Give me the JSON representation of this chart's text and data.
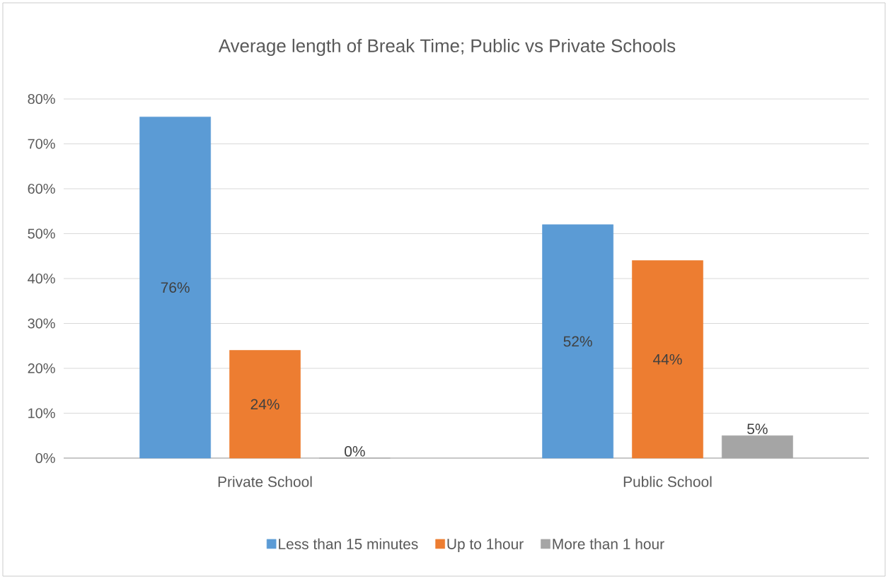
{
  "chart_data": {
    "type": "bar",
    "title": "Average length of Break Time; Public vs Private Schools",
    "categories": [
      "Private School",
      "Public School"
    ],
    "series": [
      {
        "name": "Less than 15 minutes",
        "color": "#5b9bd5",
        "values": [
          76,
          52
        ],
        "value_labels": [
          "76%",
          "52%"
        ]
      },
      {
        "name": "Up to 1hour",
        "color": "#ed7d31",
        "values": [
          24,
          44
        ],
        "value_labels": [
          "24%",
          "44%"
        ]
      },
      {
        "name": "More than 1 hour",
        "color": "#a5a5a5",
        "values": [
          0,
          5
        ],
        "value_labels": [
          "0%",
          "5%"
        ]
      }
    ],
    "ylim": [
      0,
      80
    ],
    "yticks": [
      {
        "value": 0,
        "label": "0%"
      },
      {
        "value": 10,
        "label": "10%"
      },
      {
        "value": 20,
        "label": "20%"
      },
      {
        "value": 30,
        "label": "30%"
      },
      {
        "value": 40,
        "label": "40%"
      },
      {
        "value": 50,
        "label": "50%"
      },
      {
        "value": 60,
        "label": "60%"
      },
      {
        "value": 70,
        "label": "70%"
      },
      {
        "value": 80,
        "label": "80%"
      }
    ],
    "grid": "y",
    "legend": "bottom"
  }
}
